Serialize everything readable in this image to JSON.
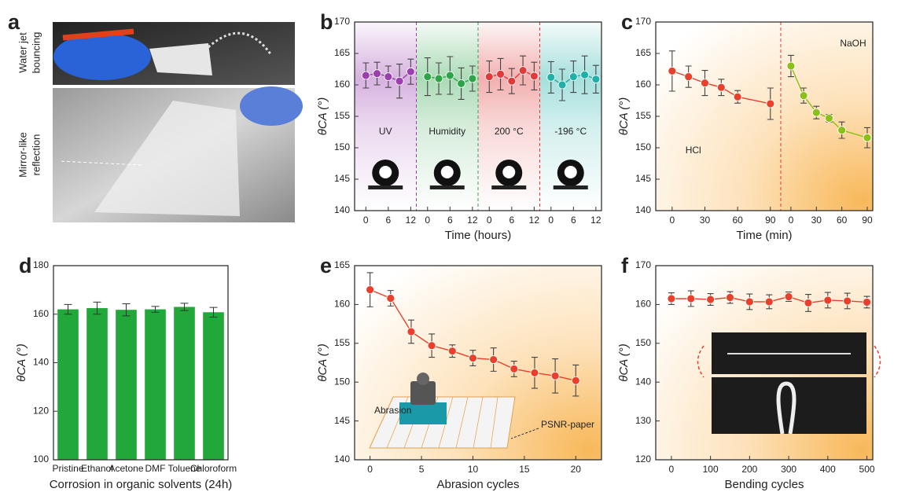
{
  "panel_a": {
    "label": "a",
    "captions": [
      [
        "Water jet",
        "bouncing"
      ],
      [
        "Mirror-like",
        "reflection"
      ]
    ]
  },
  "chart_data": [
    {
      "panel": "b",
      "type": "segmented_line",
      "ylabel": "θCA (°)",
      "xlabel": "Time (hours)",
      "ylim": [
        140,
        170
      ],
      "yticks": [
        140,
        145,
        150,
        155,
        160,
        165,
        170
      ],
      "segments": [
        {
          "name": "UV",
          "color": "#9b3fb0",
          "xlim": [
            -3,
            13.5
          ],
          "xticks": [
            0,
            6,
            12
          ],
          "x": [
            0,
            3,
            6,
            9,
            12
          ],
          "values": [
            161.5,
            161.8,
            161.3,
            160.6,
            162.1
          ],
          "errors": [
            2.0,
            1.8,
            1.7,
            2.7,
            2.0
          ]
        },
        {
          "name": "Humidity",
          "color": "#2ea44a",
          "xlim": [
            -3,
            13.5
          ],
          "xticks": [
            0,
            6,
            12
          ],
          "x": [
            0,
            3,
            6,
            9,
            12
          ],
          "values": [
            161.3,
            161.0,
            161.5,
            160.2,
            161.0
          ],
          "errors": [
            3.0,
            2.5,
            3.0,
            2.5,
            2.0
          ]
        },
        {
          "name": "200 °C",
          "color": "#e03a3a",
          "xlim": [
            -3,
            13.5
          ],
          "xticks": [
            0,
            6,
            12
          ],
          "x": [
            0,
            3,
            6,
            9,
            12
          ],
          "values": [
            161.3,
            161.7,
            160.6,
            162.3,
            161.4
          ],
          "errors": [
            2.5,
            2.5,
            2.0,
            2.3,
            2.2
          ]
        },
        {
          "name": "-196 °C",
          "color": "#1fb0a8",
          "xlim": [
            -3,
            13.5
          ],
          "xticks": [
            0,
            6,
            12
          ],
          "x": [
            0,
            3,
            6,
            9,
            12
          ],
          "values": [
            161.2,
            160.0,
            161.3,
            161.6,
            160.9
          ],
          "errors": [
            2.5,
            2.5,
            2.5,
            3.0,
            2.2
          ]
        }
      ]
    },
    {
      "panel": "c",
      "type": "segmented_line",
      "ylabel": "θCA (°)",
      "xlabel": "Time (min)",
      "ylim": [
        140,
        170
      ],
      "yticks": [
        140,
        145,
        150,
        155,
        160,
        165,
        170
      ],
      "segments": [
        {
          "name": "HCl",
          "color": "#e8402a",
          "label_color": "#d8302a",
          "xlim": [
            -15,
            99.5
          ],
          "xticks": [
            0,
            30,
            60,
            90
          ],
          "x": [
            0,
            15,
            30,
            45,
            60,
            90
          ],
          "values": [
            162.2,
            161.3,
            160.3,
            159.6,
            158.1,
            157.0
          ],
          "errors": [
            3.2,
            1.7,
            2.0,
            1.3,
            1.0,
            2.5
          ]
        },
        {
          "name": "NaOH",
          "color": "#8cbf1a",
          "label_color": "#a8a010",
          "xlim": [
            -12,
            96.5
          ],
          "xticks": [
            0,
            30,
            60,
            90
          ],
          "x": [
            0,
            15,
            30,
            45,
            60,
            90
          ],
          "values": [
            163.0,
            158.3,
            155.6,
            154.7,
            152.8,
            151.6
          ],
          "errors": [
            1.7,
            1.2,
            1.0,
            0.6,
            1.3,
            1.6
          ]
        }
      ]
    },
    {
      "panel": "d",
      "type": "bar",
      "ylabel": "θCA (°)",
      "xlabel": "Corrosion in organic solvents (24h)",
      "ylim": [
        100,
        180
      ],
      "yticks": [
        100,
        120,
        140,
        160,
        180
      ],
      "color": "#22a83a",
      "categories": [
        "Pristine",
        "Ethanol",
        "Acetone",
        "DMF",
        "Toluene",
        "Chloroform"
      ],
      "values": [
        162.0,
        162.5,
        161.8,
        162.0,
        163.0,
        160.8
      ],
      "errors": [
        2.0,
        2.5,
        2.5,
        1.2,
        1.5,
        2.0
      ]
    },
    {
      "panel": "e",
      "type": "line",
      "ylabel": "θCA (°)",
      "xlabel": "Abrasion cycles",
      "ylim": [
        140,
        165
      ],
      "yticks": [
        140,
        145,
        150,
        155,
        160,
        165
      ],
      "xlim": [
        -1.5,
        22.5
      ],
      "xticks": [
        0,
        5,
        10,
        15,
        20
      ],
      "color": "#e8402a",
      "annotations": [
        "Abrasion",
        "PSNR-paper"
      ],
      "x": [
        0,
        2,
        4,
        6,
        8,
        10,
        12,
        14,
        16,
        18,
        20
      ],
      "values": [
        161.9,
        160.8,
        156.5,
        154.7,
        154.0,
        153.1,
        152.9,
        151.7,
        151.2,
        150.8,
        150.2
      ],
      "errors": [
        2.2,
        1.0,
        1.5,
        1.5,
        0.8,
        1.0,
        1.5,
        1.0,
        2.0,
        2.2,
        2.0
      ]
    },
    {
      "panel": "f",
      "type": "line",
      "ylabel": "θCA (°)",
      "xlabel": "Bending cycles",
      "ylim": [
        120,
        170
      ],
      "yticks": [
        120,
        130,
        140,
        150,
        160,
        170
      ],
      "xlim": [
        -40,
        515
      ],
      "xticks": [
        0,
        100,
        200,
        300,
        400,
        500
      ],
      "color": "#e8402a",
      "x": [
        0,
        50,
        100,
        150,
        200,
        250,
        300,
        350,
        400,
        450,
        500
      ],
      "values": [
        161.5,
        161.5,
        161.3,
        161.8,
        160.7,
        160.7,
        162.0,
        160.4,
        161.1,
        160.9,
        160.6
      ],
      "errors": [
        1.5,
        2.0,
        1.5,
        1.5,
        2.0,
        1.8,
        1.2,
        2.2,
        2.0,
        2.0,
        1.5
      ]
    }
  ]
}
